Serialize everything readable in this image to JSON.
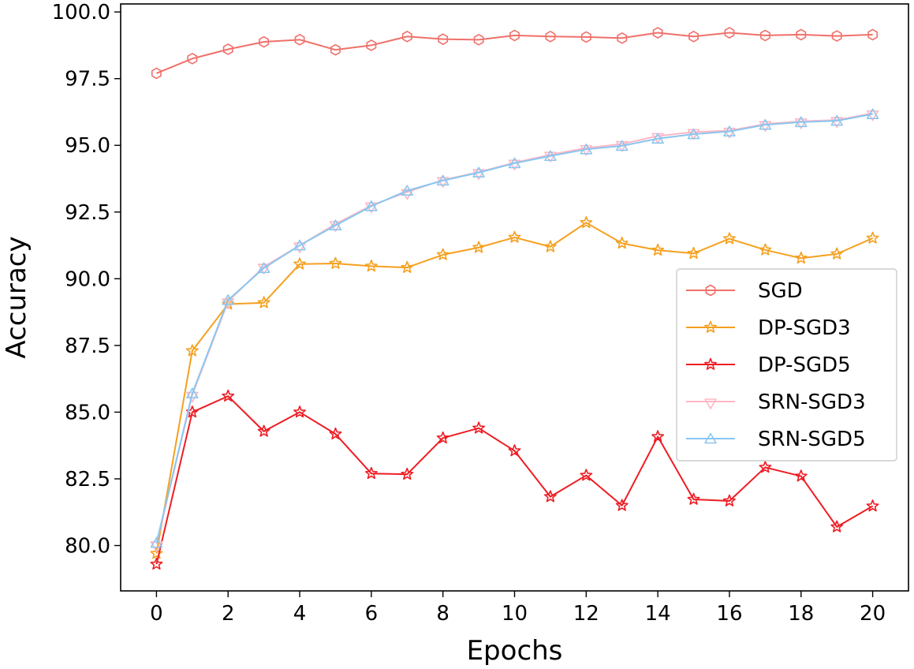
{
  "chart_data": {
    "type": "line",
    "title": "",
    "xlabel": "Epochs",
    "ylabel": "Accuracy",
    "xlim": [
      -1,
      21
    ],
    "ylim": [
      78.3,
      100.3
    ],
    "xticks": [
      "0",
      "2",
      "4",
      "6",
      "8",
      "10",
      "12",
      "14",
      "16",
      "18",
      "20"
    ],
    "yticks": [
      "80.0",
      "82.5",
      "85.0",
      "87.5",
      "90.0",
      "92.5",
      "95.0",
      "97.5",
      "100.0"
    ],
    "legend_position": "center-right",
    "x": [
      0,
      1,
      2,
      3,
      4,
      5,
      6,
      7,
      8,
      9,
      10,
      11,
      12,
      13,
      14,
      15,
      16,
      17,
      18,
      19,
      20
    ],
    "series": [
      {
        "name": "SGD",
        "color": "#f0706a",
        "marker": "hexagon",
        "values": [
          97.7,
          98.25,
          98.6,
          98.88,
          98.96,
          98.58,
          98.75,
          99.08,
          98.98,
          98.96,
          99.12,
          99.08,
          99.06,
          99.02,
          99.22,
          99.08,
          99.22,
          99.12,
          99.15,
          99.1,
          99.15
        ]
      },
      {
        "name": "DP-SGD3",
        "color": "#f5a01f",
        "marker": "star",
        "values": [
          79.7,
          87.3,
          89.05,
          89.1,
          90.55,
          90.57,
          90.47,
          90.42,
          90.9,
          91.17,
          91.55,
          91.2,
          92.1,
          91.33,
          91.07,
          90.95,
          91.5,
          91.08,
          90.77,
          90.93,
          91.52
        ]
      },
      {
        "name": "DP-SGD5",
        "color": "#ee1c23",
        "marker": "star",
        "values": [
          79.3,
          85.0,
          85.6,
          84.28,
          85.0,
          84.18,
          82.7,
          82.67,
          84.03,
          84.4,
          83.55,
          81.83,
          82.63,
          81.5,
          84.08,
          81.73,
          81.67,
          82.93,
          82.6,
          80.7,
          81.48
        ]
      },
      {
        "name": "SRN-SGD3",
        "color": "#ffb7c4",
        "marker": "triangle-down",
        "values": [
          80.05,
          85.65,
          89.15,
          90.45,
          91.25,
          92.05,
          92.75,
          93.25,
          93.7,
          94.0,
          94.35,
          94.65,
          94.9,
          95.05,
          95.35,
          95.5,
          95.55,
          95.8,
          95.9,
          95.95,
          96.2
        ]
      },
      {
        "name": "SRN-SGD5",
        "color": "#8ac6f0",
        "marker": "triangle-up",
        "values": [
          80.1,
          85.7,
          89.2,
          90.4,
          91.25,
          92.0,
          92.72,
          93.3,
          93.68,
          93.98,
          94.33,
          94.6,
          94.85,
          94.98,
          95.25,
          95.42,
          95.52,
          95.77,
          95.87,
          95.92,
          96.17
        ]
      }
    ]
  }
}
